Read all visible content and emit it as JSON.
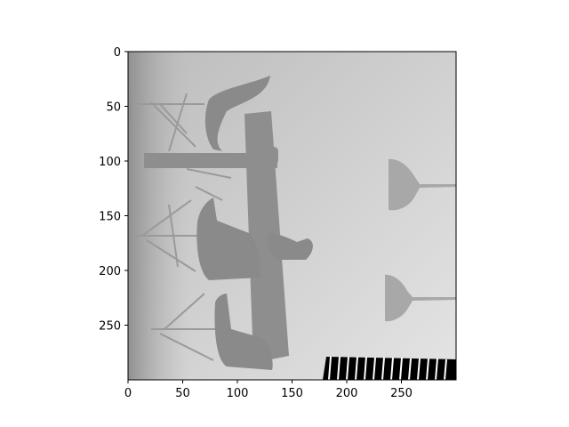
{
  "chart_data": {
    "type": "heatmap",
    "title": "",
    "xlabel": "",
    "ylabel": "",
    "colormap": "gray",
    "image_width": 300,
    "image_height": 300,
    "xlim": [
      0,
      300
    ],
    "ylim": [
      300,
      0
    ],
    "y_inverted": true,
    "grid": false,
    "x_ticks": [
      0,
      50,
      100,
      150,
      200,
      250
    ],
    "y_ticks": [
      0,
      50,
      100,
      150,
      200,
      250
    ],
    "x_tick_labels": [
      "0",
      "50",
      "100",
      "150",
      "200",
      "250"
    ],
    "y_tick_labels": [
      "0",
      "50",
      "100",
      "150",
      "200",
      "250"
    ],
    "colors": {
      "far_background": "#d6d6d6",
      "near_background": "#9a9a9a",
      "objects": "#8c8c8c",
      "invalid": "#000000"
    }
  }
}
